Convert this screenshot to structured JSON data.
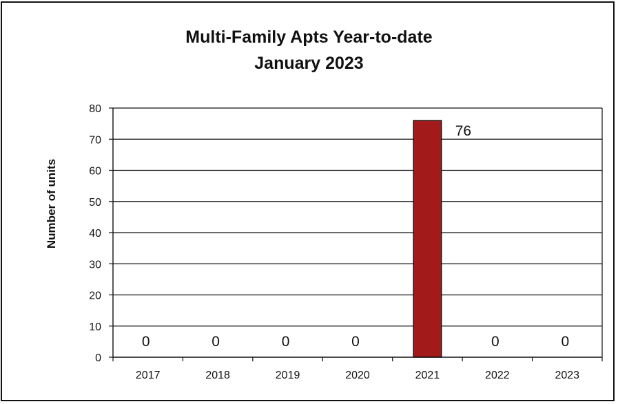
{
  "chart_data": {
    "type": "bar",
    "title": "Multi-Family Apts Year-to-date",
    "subtitle": "January 2023",
    "xlabel": "",
    "ylabel": "Number of units",
    "categories": [
      "2017",
      "2018",
      "2019",
      "2020",
      "2021",
      "2022",
      "2023"
    ],
    "values": [
      0,
      0,
      0,
      0,
      76,
      0,
      0
    ],
    "data_labels": [
      "0",
      "0",
      "0",
      "0",
      "76",
      "0",
      "0"
    ],
    "ylim": [
      0,
      80
    ],
    "yticks": [
      0,
      10,
      20,
      30,
      40,
      50,
      60,
      70,
      80
    ],
    "grid": true,
    "legend": "none",
    "bar_color": "#a31a1a"
  }
}
